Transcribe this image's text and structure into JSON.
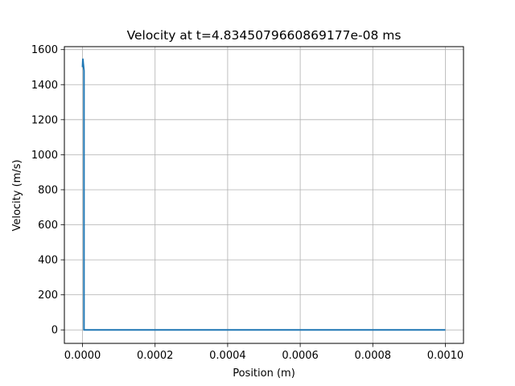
{
  "chart_data": {
    "type": "line",
    "title": "Velocity at t=4.8345079660869177e-08 ms",
    "xlabel": "Position (m)",
    "ylabel": "Velocity (m/s)",
    "xlim": [
      -5e-05,
      0.00105
    ],
    "ylim": [
      -77,
      1617
    ],
    "x_ticks": [
      0,
      0.0002,
      0.0004,
      0.0006,
      0.0008,
      0.001
    ],
    "x_tick_labels": [
      "0.0000",
      "0.0002",
      "0.0004",
      "0.0006",
      "0.0008",
      "0.0010"
    ],
    "y_ticks": [
      0,
      200,
      400,
      600,
      800,
      1000,
      1200,
      1400,
      1600
    ],
    "y_tick_labels": [
      "0",
      "200",
      "400",
      "600",
      "800",
      "1000",
      "1200",
      "1400",
      "1600"
    ],
    "grid": true,
    "series": [
      {
        "color": "#1f77b4",
        "x": [
          0,
          1e-06,
          2e-06,
          3e-06,
          4e-06,
          4e-06,
          0.001
        ],
        "y": [
          1500,
          1545,
          1520,
          1500,
          1480,
          0,
          0
        ]
      }
    ]
  }
}
